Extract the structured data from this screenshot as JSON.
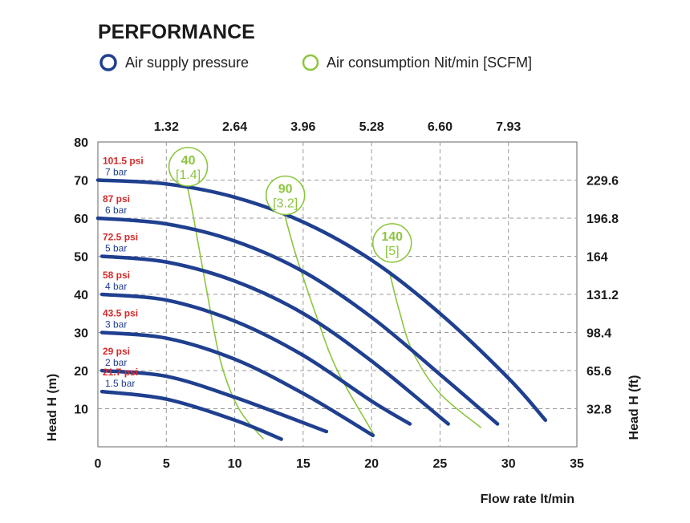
{
  "chart_data": {
    "type": "line",
    "title": "PERFORMANCE",
    "legend": [
      {
        "label": "Air supply pressure",
        "color": "#1f3f8f"
      },
      {
        "label": "Air consumption Nit/min [SCFM]",
        "color": "#8cc63f"
      }
    ],
    "xlabel": "Flow rate lt/min",
    "ylabel": "Head H (m)",
    "y2label": "Head H (ft)",
    "xlim": [
      0,
      35
    ],
    "ylim": [
      0,
      80
    ],
    "x_ticks": [
      "0",
      "5",
      "10",
      "15",
      "20",
      "25",
      "30",
      "35"
    ],
    "x_tick_values": [
      0,
      5,
      10,
      15,
      20,
      25,
      30,
      35
    ],
    "y_ticks": [
      "10",
      "20",
      "30",
      "40",
      "50",
      "60",
      "70",
      "80"
    ],
    "y_tick_values": [
      10,
      20,
      30,
      40,
      50,
      60,
      70,
      80
    ],
    "top_ticks": [
      "1.32",
      "2.64",
      "3.96",
      "5.28",
      "6.60",
      "7.93"
    ],
    "top_tick_values": [
      5,
      10,
      15,
      20,
      25,
      30
    ],
    "right_ticks": [
      "32.8",
      "65.6",
      "98.4",
      "131.2",
      "164",
      "196.8",
      "229.6"
    ],
    "right_tick_values": [
      10,
      20,
      30,
      40,
      50,
      60,
      70
    ],
    "grid": true,
    "series": [
      {
        "name": "7 bar",
        "psi": "101.5 psi",
        "bar": "7 bar",
        "label_y": 70,
        "x": [
          0,
          5,
          10,
          15,
          20,
          25,
          30,
          32.7
        ],
        "y": [
          70,
          69,
          65.5,
          59,
          49,
          35,
          18,
          7
        ]
      },
      {
        "name": "6 bar",
        "psi": "87 psi",
        "bar": "6 bar",
        "label_y": 60,
        "x": [
          0,
          5,
          10,
          15,
          20,
          25,
          29.2
        ],
        "y": [
          60,
          58.5,
          54,
          46,
          34,
          19,
          6
        ]
      },
      {
        "name": "5 bar",
        "psi": "72.5 psi",
        "bar": "5 bar",
        "label_y": 50,
        "x": [
          0.3,
          5,
          10,
          15,
          20,
          25.6
        ],
        "y": [
          50,
          48.5,
          43.5,
          35,
          22.5,
          6
        ]
      },
      {
        "name": "4 bar",
        "psi": "58 psi",
        "bar": "4 bar",
        "label_y": 40,
        "x": [
          0.3,
          5,
          10,
          15,
          20,
          22.8
        ],
        "y": [
          40,
          38.5,
          33,
          24,
          12,
          6
        ]
      },
      {
        "name": "3 bar",
        "psi": "43.5 psi",
        "bar": "3 bar",
        "label_y": 30,
        "x": [
          0.3,
          5,
          10,
          15,
          20.1
        ],
        "y": [
          30,
          28.5,
          23,
          14,
          3
        ]
      },
      {
        "name": "2 bar",
        "psi": "29 psi",
        "bar": "2 bar",
        "label_y": 20,
        "x": [
          0.3,
          5,
          10,
          16.7
        ],
        "y": [
          20,
          18.5,
          13,
          4
        ]
      },
      {
        "name": "1.5 bar",
        "psi": "21.7 psi",
        "bar": "1.5 bar",
        "label_y": 14.5,
        "x": [
          0.3,
          5,
          10,
          13.4
        ],
        "y": [
          14.5,
          12.5,
          7,
          2
        ]
      }
    ],
    "air_consumption": [
      {
        "value": "40",
        "scfm": "[1.4]",
        "label_x": 6.6,
        "label_y": 73.5,
        "x": [
          6.5,
          7,
          8,
          9,
          10.3,
          12.1
        ],
        "y": [
          69,
          60,
          40,
          22,
          10,
          2
        ]
      },
      {
        "value": "90",
        "scfm": "[3.2]",
        "label_x": 13.7,
        "label_y": 66,
        "x": [
          13.6,
          14.5,
          16,
          17.5,
          20.2
        ],
        "y": [
          61.5,
          50,
          34,
          20,
          3
        ]
      },
      {
        "value": "140",
        "scfm": "[5]",
        "label_x": 21.5,
        "label_y": 53.5,
        "x": [
          21.3,
          22,
          23,
          25,
          28
        ],
        "y": [
          46,
          36,
          25,
          14,
          5
        ]
      }
    ]
  }
}
